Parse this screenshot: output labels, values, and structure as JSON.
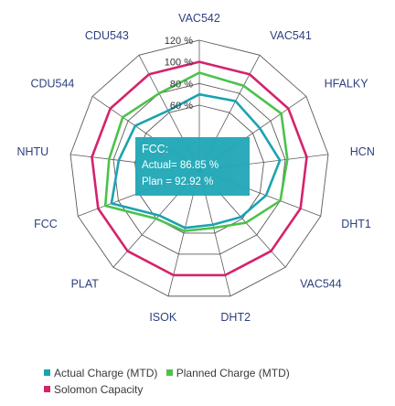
{
  "chart_data": {
    "type": "radar",
    "categories": [
      "VAC542",
      "VAC541",
      "HFALKY",
      "HCN",
      "DHT1",
      "VAC544",
      "DHT2",
      "ISOK",
      "PLAT",
      "FCC",
      "NHTU",
      "CDU544",
      "CDU543"
    ],
    "rings": [
      60,
      80,
      100,
      120
    ],
    "tick_labels": [
      "60 %",
      "80 %",
      "100 %",
      "120 %"
    ],
    "rmax": 120,
    "series": [
      {
        "name": "Actual Charge (MTD)",
        "color": "#1aa3b0",
        "values": [
          70,
          72,
          68,
          75,
          66,
          58,
          52,
          55,
          56,
          86.85,
          75,
          72,
          62
        ]
      },
      {
        "name": "Planned Charge (MTD)",
        "color": "#4cc24a",
        "values": [
          90,
          88,
          92,
          82,
          80,
          65,
          55,
          58,
          60,
          92.92,
          84,
          86,
          80
        ]
      },
      {
        "name": "Solomon Capacity",
        "color": "#d4236b",
        "values": [
          100,
          100,
          100,
          100,
          100,
          100,
          100,
          100,
          100,
          100,
          100,
          100,
          100
        ]
      }
    ],
    "tooltip": {
      "title": "FCC:",
      "actual": "Actual= 86.85 %",
      "plan": "Plan = 92.92 %"
    },
    "legend_position": "bottom-left"
  }
}
